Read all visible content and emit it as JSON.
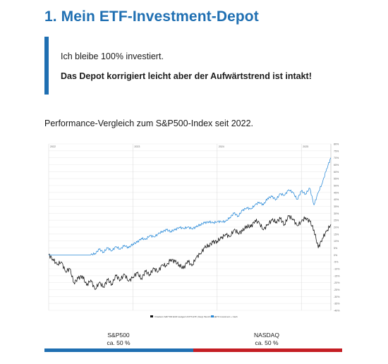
{
  "header": {
    "title": "1. Mein ETF-Investment-Depot"
  },
  "quote": {
    "line1": "Ich bleibe 100% investiert.",
    "line2": "Das Depot korrigiert leicht aber der Aufwärtstrend ist intakt!"
  },
  "subtitle": "Performance-Vergleich zum S&P500-Index seit 2022.",
  "colors": {
    "accent": "#1f6fb2",
    "nasdaq": "#c41e24",
    "benchmark": "#111111",
    "depot": "#2a8ad8"
  },
  "chart_data": {
    "type": "line",
    "title": "",
    "x_ticks": [
      "2022",
      "2023",
      "2024",
      "2025"
    ],
    "y_ticks": [
      "80%",
      "75%",
      "70%",
      "65%",
      "60%",
      "55%",
      "50%",
      "45%",
      "40%",
      "35%",
      "30%",
      "25%",
      "20%",
      "15%",
      "10%",
      "5%",
      "0%",
      "-5%",
      "-10%",
      "-15%",
      "-20%",
      "-25%",
      "-30%",
      "-35%",
      "-40%"
    ],
    "ylim": [
      -40,
      80
    ],
    "xlim": [
      2022.0,
      2025.35
    ],
    "grid": true,
    "legend": "bottom-center",
    "series": [
      {
        "name": "Xtrackers S&P 500 EUR Hedged UCITS ETF (Vergl. Benchmark)",
        "color": "#111111",
        "x": [
          2022.0,
          2022.05,
          2022.1,
          2022.15,
          2022.2,
          2022.25,
          2022.3,
          2022.35,
          2022.4,
          2022.45,
          2022.5,
          2022.55,
          2022.6,
          2022.65,
          2022.7,
          2022.75,
          2022.8,
          2022.85,
          2022.9,
          2022.95,
          2023.0,
          2023.05,
          2023.1,
          2023.15,
          2023.2,
          2023.25,
          2023.3,
          2023.35,
          2023.4,
          2023.45,
          2023.5,
          2023.55,
          2023.6,
          2023.65,
          2023.7,
          2023.75,
          2023.8,
          2023.85,
          2023.9,
          2023.95,
          2024.0,
          2024.05,
          2024.1,
          2024.15,
          2024.2,
          2024.25,
          2024.3,
          2024.35,
          2024.4,
          2024.45,
          2024.5,
          2024.55,
          2024.6,
          2024.65,
          2024.7,
          2024.75,
          2024.8,
          2024.85,
          2024.9,
          2024.95,
          2025.0,
          2025.05,
          2025.1,
          2025.15,
          2025.2,
          2025.25,
          2025.3,
          2025.35
        ],
        "values": [
          0,
          -3,
          -7,
          -5,
          -12,
          -10,
          -20,
          -17,
          -15,
          -22,
          -18,
          -25,
          -20,
          -23,
          -18,
          -21,
          -15,
          -18,
          -14,
          -19,
          -16,
          -13,
          -17,
          -12,
          -14,
          -10,
          -12,
          -7,
          -8,
          -3,
          -5,
          -7,
          -10,
          -4,
          -8,
          -2,
          1,
          5,
          7,
          9,
          10,
          12,
          15,
          13,
          18,
          16,
          17,
          21,
          20,
          25,
          23,
          18,
          22,
          25,
          24,
          26,
          22,
          28,
          26,
          21,
          24,
          27,
          24,
          18,
          5,
          12,
          17,
          22
        ]
      },
      {
        "name": "ETF Investment + Cash",
        "color": "#2a8ad8",
        "x": [
          2022.0,
          2022.05,
          2022.1,
          2022.15,
          2022.2,
          2022.25,
          2022.3,
          2022.35,
          2022.4,
          2022.45,
          2022.5,
          2022.55,
          2022.6,
          2022.65,
          2022.7,
          2022.75,
          2022.8,
          2022.85,
          2022.9,
          2022.95,
          2023.0,
          2023.05,
          2023.1,
          2023.15,
          2023.2,
          2023.25,
          2023.3,
          2023.35,
          2023.4,
          2023.45,
          2023.5,
          2023.55,
          2023.6,
          2023.65,
          2023.7,
          2023.75,
          2023.8,
          2023.85,
          2023.9,
          2023.95,
          2024.0,
          2024.05,
          2024.1,
          2024.15,
          2024.2,
          2024.25,
          2024.3,
          2024.35,
          2024.4,
          2024.45,
          2024.5,
          2024.55,
          2024.6,
          2024.65,
          2024.7,
          2024.75,
          2024.8,
          2024.85,
          2024.9,
          2024.95,
          2025.0,
          2025.05,
          2025.1,
          2025.15,
          2025.2,
          2025.25,
          2025.3,
          2025.35
        ],
        "values": [
          0,
          0,
          0,
          0,
          0,
          0,
          0,
          0,
          0,
          0,
          0,
          1,
          4,
          2,
          5,
          3,
          6,
          4,
          7,
          5,
          8,
          9,
          12,
          11,
          14,
          13,
          15,
          17,
          18,
          17,
          18,
          20,
          19,
          20,
          19,
          20,
          22,
          23,
          24,
          23,
          24,
          24,
          24,
          27,
          30,
          28,
          32,
          34,
          33,
          36,
          38,
          36,
          41,
          42,
          40,
          44,
          43,
          47,
          45,
          40,
          46,
          44,
          48,
          36,
          45,
          52,
          62,
          70
        ]
      }
    ]
  },
  "split": {
    "left_label": "S&P500",
    "left_share": "ca. 50 %",
    "right_label": "NASDAQ",
    "right_share": "ca. 50 %",
    "left_fraction": 0.5
  }
}
